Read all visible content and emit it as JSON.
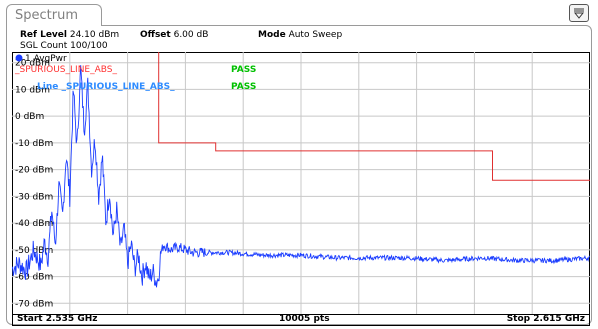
{
  "window": {
    "tab_title": "Spectrum"
  },
  "header": {
    "ref_level_label": "Ref Level",
    "ref_level_value": "24.10 dBm",
    "offset_label": "Offset",
    "offset_value": "6.00 dB",
    "mode_label": "Mode",
    "mode_value": "Auto Sweep",
    "sgl_count": "SGL Count 100/100"
  },
  "trace": {
    "label": "1 AvgPwr",
    "color": "#1a3cff"
  },
  "limit_lines": [
    {
      "label": "_SPURIOUS_LINE_ABS_",
      "status": "PASS",
      "color": "#ff3030"
    },
    {
      "label": "Line _SPURIOUS_LINE_ABS_",
      "status": "PASS",
      "color": "#2f8cff"
    }
  ],
  "colors": {
    "pass": "#00c000",
    "trace": "#1a3cff",
    "limit": "#e03030",
    "grid": "#c8c8c8"
  },
  "footer": {
    "start": "Start 2.535 GHz",
    "points": "10005 pts",
    "stop": "Stop 2.615 GHz"
  },
  "chart_data": {
    "type": "line",
    "xlim": [
      2.535,
      2.615
    ],
    "ylim": [
      -74,
      24
    ],
    "y_tick_labels": [
      "20 dBm",
      "10 dBm",
      "0 dBm",
      "-10 dBm",
      "-20 dBm",
      "-30 dBm",
      "-40 dBm",
      "-50 dBm",
      "-60 dBm",
      "-70 dBm"
    ],
    "y_ticks": [
      20,
      10,
      0,
      -10,
      -20,
      -30,
      -40,
      -50,
      -60,
      -70
    ],
    "grid": true,
    "x_divisions": 10,
    "limit_line": {
      "x": [
        2.5553,
        2.5553,
        2.5632,
        2.5632,
        2.6015,
        2.6015,
        2.615
      ],
      "y": [
        24,
        -10,
        -10,
        -13,
        -13,
        -24,
        -24
      ]
    },
    "series": [
      {
        "x": [
          2.535,
          2.536,
          2.537,
          2.538,
          2.539,
          2.5395,
          2.54,
          2.5405,
          2.541,
          2.5415,
          2.542,
          2.5425,
          2.543,
          2.5435,
          2.544,
          2.5445,
          2.545,
          2.5455,
          2.546,
          2.5465,
          2.547,
          2.5475,
          2.548,
          2.5485,
          2.549,
          2.5495,
          2.55,
          2.5505,
          2.551,
          2.5515,
          2.552,
          2.5525,
          2.553,
          2.5535,
          2.554,
          2.5545,
          2.555,
          2.5553,
          2.5555,
          2.556,
          2.557,
          2.558,
          2.56,
          2.565,
          2.57,
          2.575,
          2.58,
          2.585,
          2.59,
          2.595,
          2.6,
          2.605,
          2.61,
          2.615
        ],
        "y": [
          -57,
          -55,
          -58,
          -50,
          -56,
          -47,
          -53,
          -35,
          -48,
          -26,
          -38,
          -14,
          -30,
          10,
          -12,
          18,
          -5,
          12,
          -20,
          -8,
          -30,
          -15,
          -40,
          -28,
          -45,
          -35,
          -50,
          -42,
          -55,
          -48,
          -57,
          -52,
          -60,
          -55,
          -61,
          -58,
          -62,
          -60,
          -52,
          -48,
          -50,
          -49,
          -51,
          -51,
          -52,
          -52,
          -53,
          -53,
          -53,
          -54,
          -53,
          -54,
          -54,
          -53
        ]
      }
    ]
  }
}
